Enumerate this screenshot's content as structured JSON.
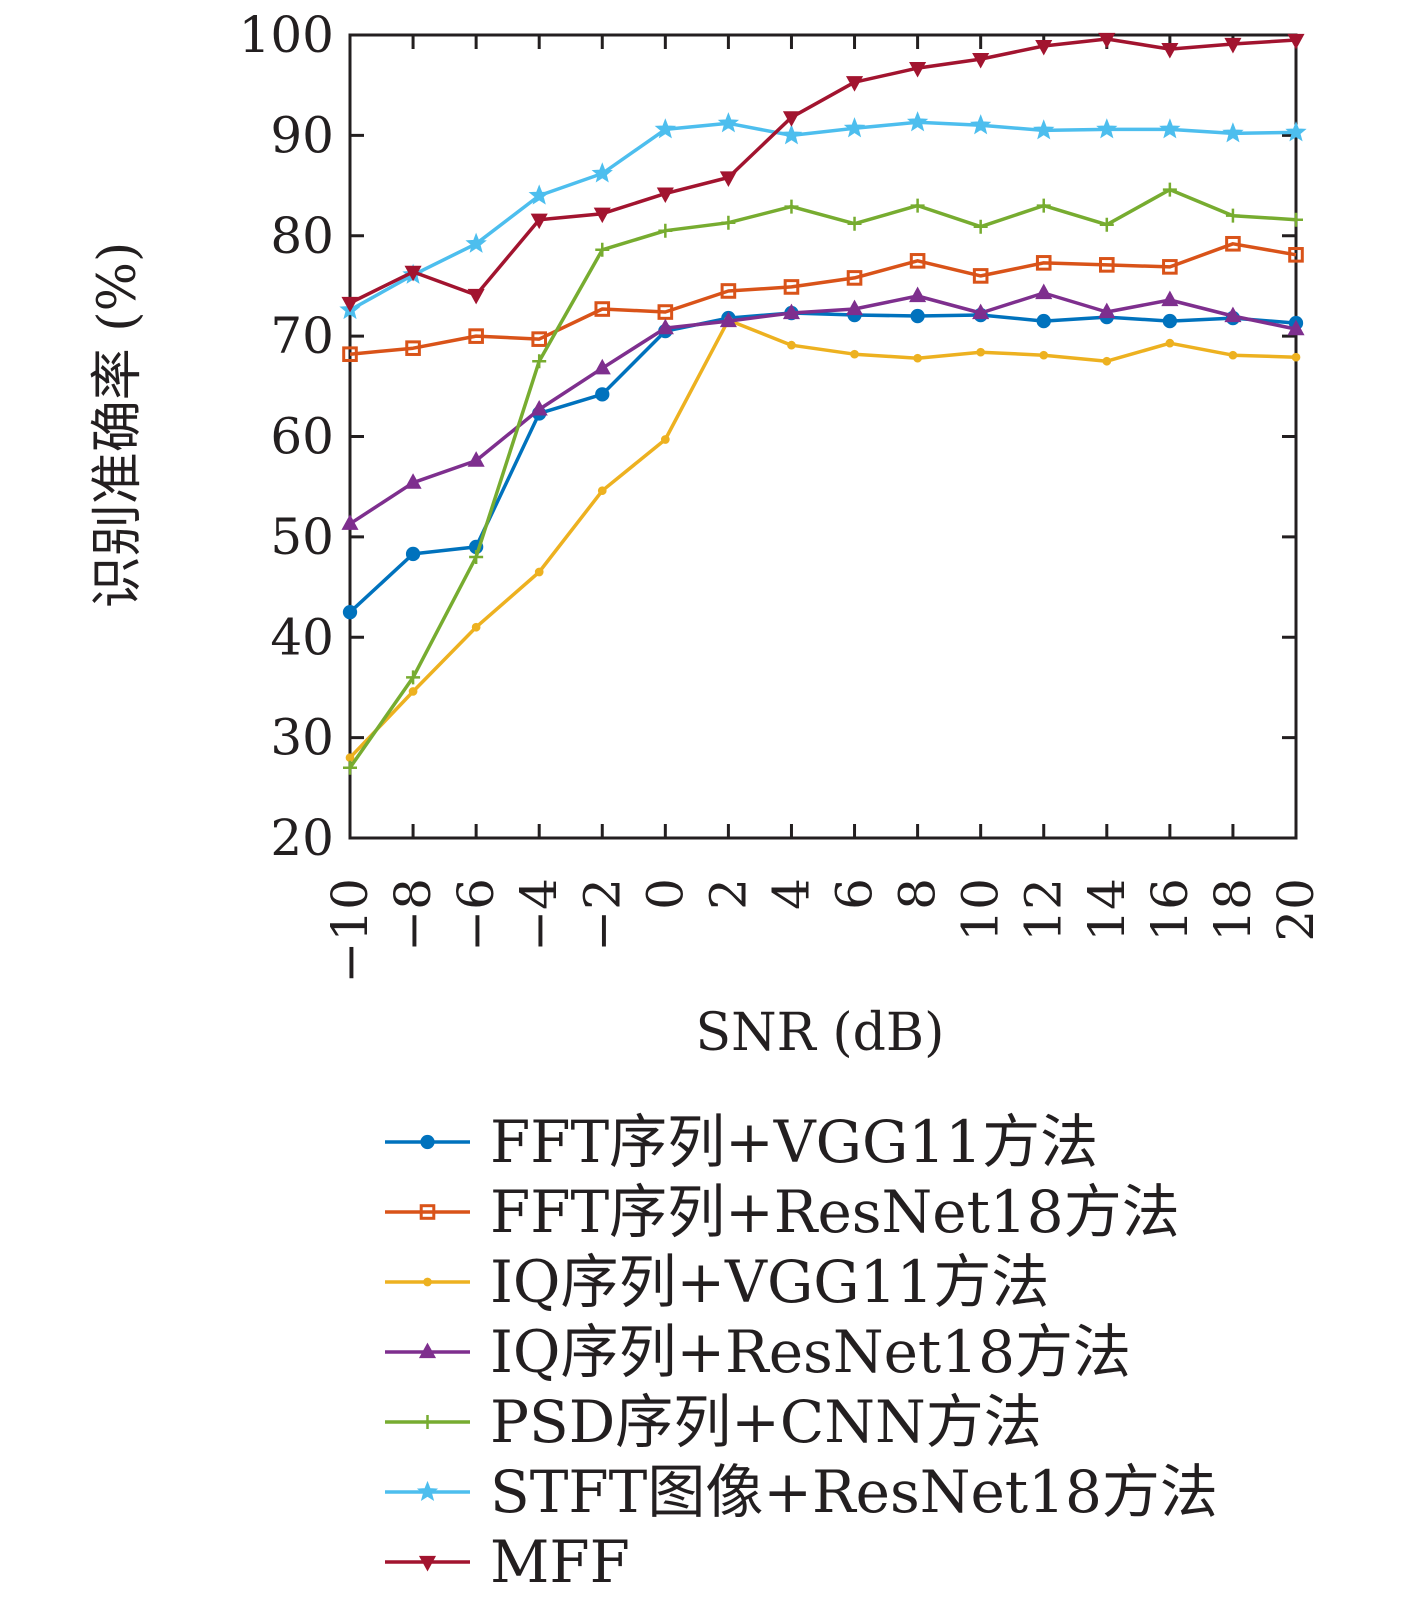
{
  "chart_data": {
    "type": "line",
    "xlabel": "SNR (dB)",
    "ylabel": "识别准确率 (%)",
    "x": [
      -10,
      -8,
      -6,
      -4,
      -2,
      0,
      2,
      4,
      6,
      8,
      10,
      12,
      14,
      16,
      18,
      20
    ],
    "x_tick_labels": [
      "−10",
      "−8",
      "−6",
      "−4",
      "−2",
      "0",
      "2",
      "4",
      "6",
      "8",
      "10",
      "12",
      "14",
      "16",
      "18",
      "20"
    ],
    "xlim": [
      -10,
      20
    ],
    "ylim": [
      20,
      100
    ],
    "y_ticks": [
      20,
      30,
      40,
      50,
      60,
      70,
      80,
      90,
      100
    ],
    "grid": false,
    "legend_position": "below",
    "series": [
      {
        "name": "FFT序列+VGG11方法",
        "color": "#0072BD",
        "marker": "circle",
        "values": [
          42.5,
          48.3,
          49.0,
          62.3,
          64.2,
          70.5,
          71.8,
          72.3,
          72.1,
          72.0,
          72.1,
          71.5,
          71.9,
          71.5,
          71.8,
          71.3
        ]
      },
      {
        "name": "FFT序列+ResNet18方法",
        "color": "#D95319",
        "marker": "square",
        "values": [
          68.2,
          68.8,
          70.0,
          69.7,
          72.7,
          72.4,
          74.5,
          74.9,
          75.8,
          77.5,
          76.0,
          77.3,
          77.1,
          76.9,
          79.2,
          78.1
        ]
      },
      {
        "name": "IQ序列+VGG11方法",
        "color": "#EDB120",
        "marker": "dot",
        "values": [
          28.0,
          34.6,
          41.0,
          46.5,
          54.6,
          59.7,
          71.6,
          69.1,
          68.2,
          67.8,
          68.4,
          68.1,
          67.5,
          69.3,
          68.1,
          67.9
        ]
      },
      {
        "name": "IQ序列+ResNet18方法",
        "color": "#7E2F8E",
        "marker": "triangle-up",
        "values": [
          51.3,
          55.4,
          57.6,
          62.7,
          66.8,
          70.8,
          71.5,
          72.3,
          72.7,
          74.0,
          72.3,
          74.3,
          72.4,
          73.6,
          72.0,
          70.7
        ]
      },
      {
        "name": "PSD序列+CNN方法",
        "color": "#77AC30",
        "marker": "plus",
        "values": [
          27.0,
          36.0,
          48.0,
          67.5,
          78.6,
          80.5,
          81.3,
          82.9,
          81.2,
          83.0,
          80.9,
          83.0,
          81.1,
          84.6,
          82.0,
          81.6
        ]
      },
      {
        "name": "STFT图像+ResNet18方法",
        "color": "#4DBEEE",
        "marker": "star",
        "values": [
          72.6,
          76.1,
          79.2,
          84.0,
          86.2,
          90.6,
          91.2,
          90.0,
          90.7,
          91.3,
          91.0,
          90.5,
          90.6,
          90.6,
          90.2,
          90.3
        ]
      },
      {
        "name": "MFF",
        "color": "#A2142F",
        "marker": "triangle-down",
        "values": [
          73.3,
          76.4,
          74.1,
          81.6,
          82.2,
          84.2,
          85.8,
          91.8,
          95.3,
          96.7,
          97.6,
          98.9,
          99.6,
          98.6,
          99.1,
          99.5
        ]
      }
    ]
  }
}
